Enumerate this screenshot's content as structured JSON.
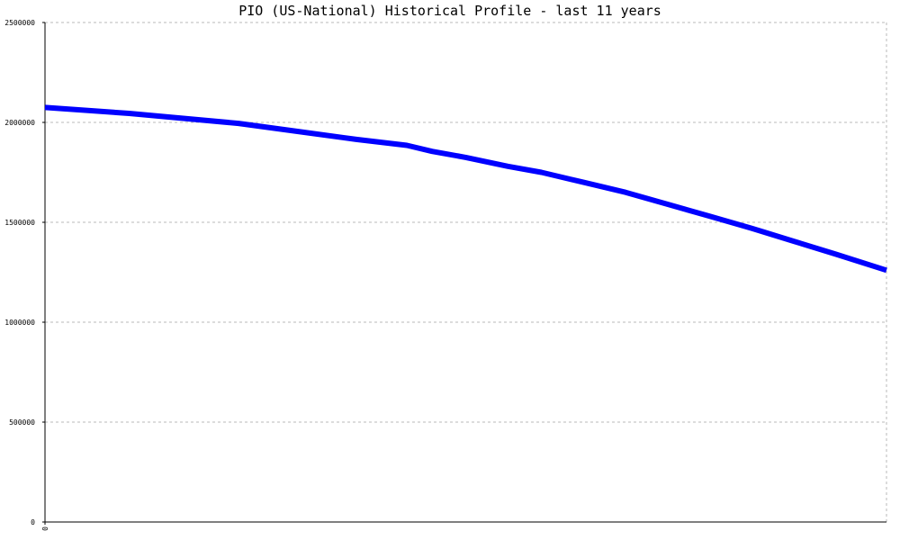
{
  "chart_data": {
    "type": "line",
    "title": "PIO (US-National) Historical Profile - last 11 years",
    "xlabel": "",
    "ylabel": "",
    "x_ticks": [
      "0"
    ],
    "y_ticks": [
      "0",
      "500000",
      "1000000",
      "1500000",
      "2000000",
      "2500000"
    ],
    "ylim": [
      0,
      2500000
    ],
    "xlim": [
      0,
      100
    ],
    "grid": true,
    "colors": {
      "series": "#0000ff",
      "grid": "#b8b8b8",
      "axis": "#000000"
    },
    "series": [
      {
        "x": [
          0,
          10,
          23,
          30,
          37,
          43,
          46,
          50,
          55,
          59,
          64,
          69,
          74,
          79,
          84,
          89,
          94,
          100
        ],
        "values": [
          2075000,
          2045000,
          1995000,
          1955000,
          1915000,
          1885000,
          1855000,
          1825000,
          1780000,
          1750000,
          1700000,
          1650000,
          1590000,
          1530000,
          1470000,
          1405000,
          1340000,
          1260000
        ]
      }
    ]
  }
}
